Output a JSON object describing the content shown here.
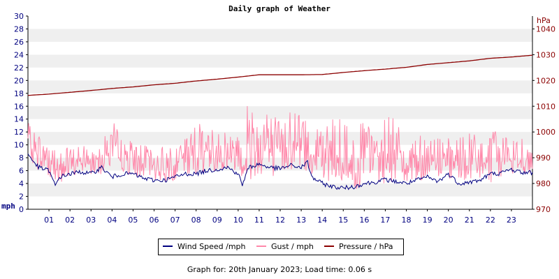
{
  "chart_data": {
    "type": "line",
    "title": "Daily graph of Weather",
    "x_tick_labels": [
      "01",
      "02",
      "03",
      "04",
      "05",
      "06",
      "07",
      "08",
      "09",
      "10",
      "11",
      "12",
      "13",
      "14",
      "15",
      "16",
      "17",
      "18",
      "19",
      "20",
      "21",
      "22",
      "23"
    ],
    "x_range_hours": [
      0,
      24
    ],
    "y_left": {
      "label": "mph",
      "ticks": [
        0,
        2,
        4,
        6,
        8,
        10,
        12,
        14,
        16,
        18,
        20,
        22,
        24,
        26,
        28,
        30
      ],
      "ylim": [
        0,
        30
      ]
    },
    "y_right": {
      "label": "hPa",
      "ticks": [
        970,
        980,
        990,
        1000,
        1010,
        1020,
        1030,
        1040
      ],
      "ylim": [
        970,
        1045
      ]
    },
    "grid": "horizontal alternating bands",
    "legend_position": "bottom-center",
    "series": [
      {
        "name": "Wind Speed /mph",
        "axis": "left",
        "color": "#000080",
        "x": [
          0,
          0.5,
          1,
          1.3,
          1.5,
          2,
          2.5,
          3,
          3.5,
          4,
          4.5,
          5,
          5.5,
          6,
          6.5,
          7,
          7.5,
          8,
          8.5,
          9,
          9.5,
          10,
          10.2,
          10.5,
          11,
          11.5,
          12,
          12.5,
          13,
          13.3,
          13.5,
          14,
          14.5,
          15,
          15.5,
          16,
          16.5,
          17,
          17.5,
          18,
          18.5,
          19,
          19.5,
          20,
          20.5,
          21,
          21.5,
          22,
          22.5,
          23,
          23.5,
          24
        ],
        "values": [
          8.5,
          6.5,
          6,
          3.6,
          5,
          5.5,
          5.8,
          5.5,
          6.5,
          5,
          5.5,
          5.5,
          4.8,
          4.5,
          4.5,
          5,
          5.5,
          5.5,
          6,
          6.2,
          6.5,
          5.5,
          3.8,
          6.5,
          7,
          6.5,
          6.3,
          6.8,
          6.5,
          7.3,
          5,
          4,
          3.5,
          3.3,
          3.5,
          4,
          4.2,
          4.6,
          4.3,
          4,
          4.5,
          5,
          4.3,
          5.5,
          4,
          4.2,
          4.5,
          5.5,
          5.6,
          6.2,
          5.7,
          5.7
        ]
      },
      {
        "name": "Gust / mph",
        "axis": "left",
        "color": "#ff88aa",
        "x": [
          0,
          0.5,
          1,
          1.5,
          2,
          2.5,
          3,
          3.5,
          4,
          4.5,
          5,
          5.5,
          6,
          6.5,
          7,
          7.5,
          8,
          8.5,
          9,
          9.5,
          10,
          10.5,
          11,
          11.5,
          12,
          12.5,
          13,
          13.5,
          14,
          14.5,
          15,
          15.5,
          16,
          16.5,
          17,
          17.5,
          18,
          18.5,
          19,
          19.5,
          20,
          20.5,
          21,
          21.5,
          22,
          22.5,
          23,
          23.5,
          24
        ],
        "low": [
          8,
          6,
          5,
          3.5,
          5,
          5.5,
          5,
          5.5,
          6,
          5,
          5,
          5,
          4.5,
          4,
          4.5,
          5,
          5.5,
          5.5,
          5.5,
          6,
          5.5,
          4,
          5.5,
          5,
          5.5,
          6,
          5.5,
          5.5,
          4,
          3,
          3,
          3,
          3.5,
          4,
          4,
          4,
          3.5,
          4,
          4.5,
          4,
          4,
          4,
          4,
          4.5,
          4,
          5,
          5,
          5.5,
          5.5
        ],
        "high": [
          13.5,
          12,
          11,
          10,
          9.5,
          10,
          10,
          12,
          14,
          11,
          10.5,
          10,
          9.5,
          10,
          10,
          12.5,
          13,
          14,
          13.5,
          12,
          12,
          17,
          16,
          15,
          14.5,
          16,
          15,
          13,
          13,
          14,
          14,
          13,
          13.5,
          13,
          14.5,
          15,
          13,
          12,
          12,
          12,
          11,
          11,
          12,
          11.5,
          12.5,
          12.5,
          11.5,
          11,
          9.5
        ]
      },
      {
        "name": "Pressure / hPa",
        "axis": "right",
        "color": "#8b0000",
        "x": [
          0,
          1,
          2,
          3,
          4,
          5,
          6,
          7,
          8,
          9,
          10,
          11,
          12,
          13,
          14,
          15,
          16,
          17,
          18,
          19,
          20,
          21,
          22,
          23,
          24
        ],
        "values": [
          1014.2,
          1014.7,
          1015.4,
          1016.1,
          1016.9,
          1017.5,
          1018.3,
          1018.9,
          1019.8,
          1020.5,
          1021.3,
          1022.2,
          1022.2,
          1022.2,
          1022.3,
          1023.1,
          1023.8,
          1024.4,
          1025.1,
          1026.2,
          1026.9,
          1027.6,
          1028.6,
          1029.1,
          1029.8
        ]
      }
    ]
  },
  "legend": {
    "wind": "Wind Speed /mph",
    "gust": "Gust / mph",
    "pressure": "Pressure / hPa"
  },
  "footer": "Graph for: 20th January 2023; Load time: 0.06 s"
}
